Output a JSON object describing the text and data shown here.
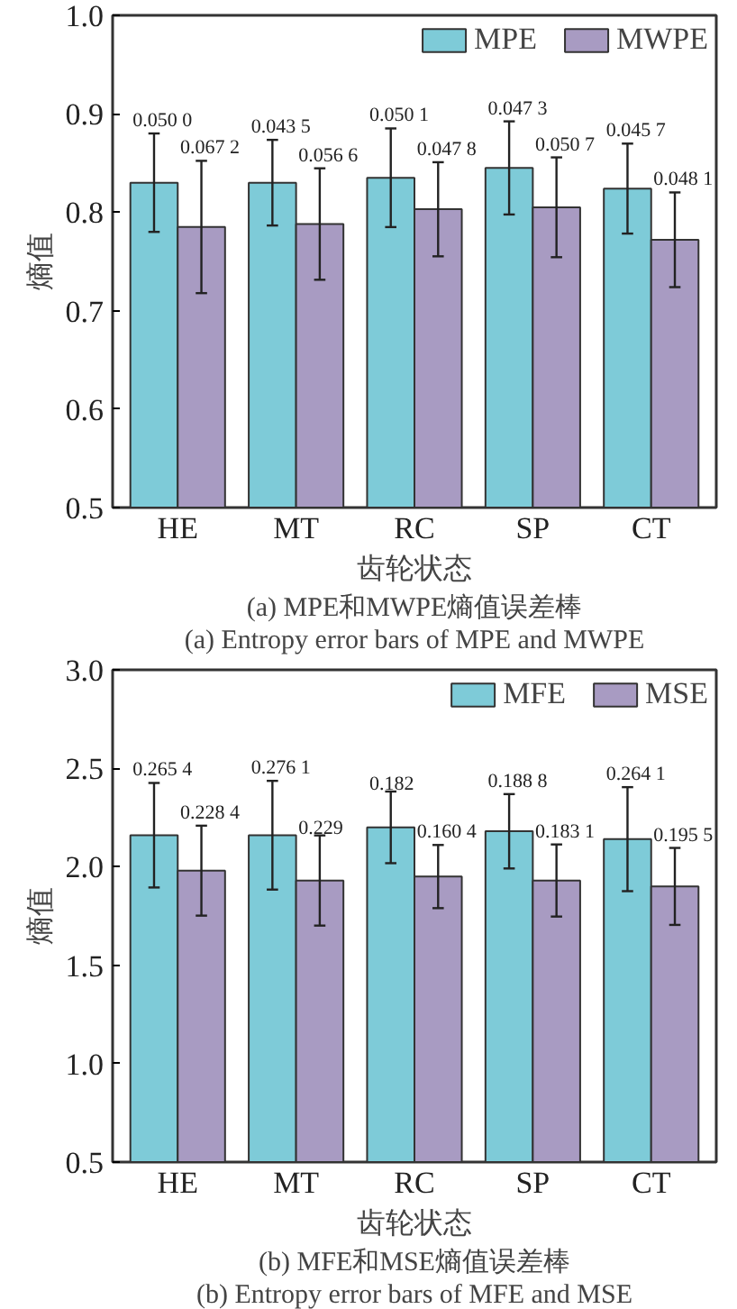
{
  "chart_data": [
    {
      "type": "bar",
      "categories": [
        "HE",
        "MT",
        "RC",
        "SP",
        "CT"
      ],
      "xlabel": "齿轮状态",
      "ylabel": "熵值",
      "ylim": [
        0.5,
        1.0
      ],
      "yticks": [
        0.5,
        0.6,
        0.7,
        0.8,
        0.9,
        {
          "value": 1.0,
          "label": "1.0"
        }
      ],
      "grid": false,
      "legend": "top right",
      "series": [
        {
          "name": "MPE",
          "color": "#7ecbd8",
          "values": [
            0.83,
            0.83,
            0.835,
            0.845,
            0.824
          ],
          "errors": [
            0.05,
            0.0435,
            0.0501,
            0.0473,
            0.0457
          ]
        },
        {
          "name": "MWPE",
          "color": "#a89bc2",
          "values": [
            0.785,
            0.788,
            0.803,
            0.805,
            0.772
          ],
          "errors": [
            0.0672,
            0.0566,
            0.0478,
            0.0507,
            0.0481
          ]
        }
      ],
      "annotations": [
        "0.050 0",
        "0.067 2",
        "0.043 5",
        "0.056 6",
        "0.050 1",
        "0.047 8",
        "0.047 3",
        "0.050 7",
        "0.045 7",
        "0.048 1",
        "(a) MPE和MWPE熵值误差棒",
        "(a) Entropy error bars of MPE and MWPE"
      ]
    },
    {
      "type": "bar",
      "categories": [
        "HE",
        "MT",
        "RC",
        "SP",
        "CT"
      ],
      "xlabel": "齿轮状态",
      "ylabel": "熵值",
      "ylim": [
        0.5,
        3.0
      ],
      "yticks": [
        0.5,
        {
          "value": 1.0,
          "label": "1.0"
        },
        1.5,
        {
          "value": 2.0,
          "label": "2.0"
        },
        2.5,
        {
          "value": 3.0,
          "label": "3.0"
        }
      ],
      "grid": false,
      "legend": "top right",
      "series": [
        {
          "name": "MFE",
          "color": "#7ecbd8",
          "values": [
            2.16,
            2.16,
            2.2,
            2.18,
            2.14
          ],
          "errors": [
            0.2654,
            0.2761,
            0.182,
            0.1888,
            0.2641
          ]
        },
        {
          "name": "MSE",
          "color": "#a89bc2",
          "values": [
            1.98,
            1.93,
            1.95,
            1.93,
            1.9
          ],
          "errors": [
            0.2284,
            0.229,
            0.1604,
            0.1831,
            0.1955
          ]
        }
      ],
      "annotations": [
        "0.265 4",
        "0.228 4",
        "0.276 1",
        "0.229",
        "0.182",
        "0.160 4",
        "0.188 8",
        "0.183 1",
        "0.264 1",
        "0.195 5",
        "(b) MFE和MSE熵值误差棒",
        "(b) Entropy error bars of MFE and MSE"
      ]
    }
  ]
}
